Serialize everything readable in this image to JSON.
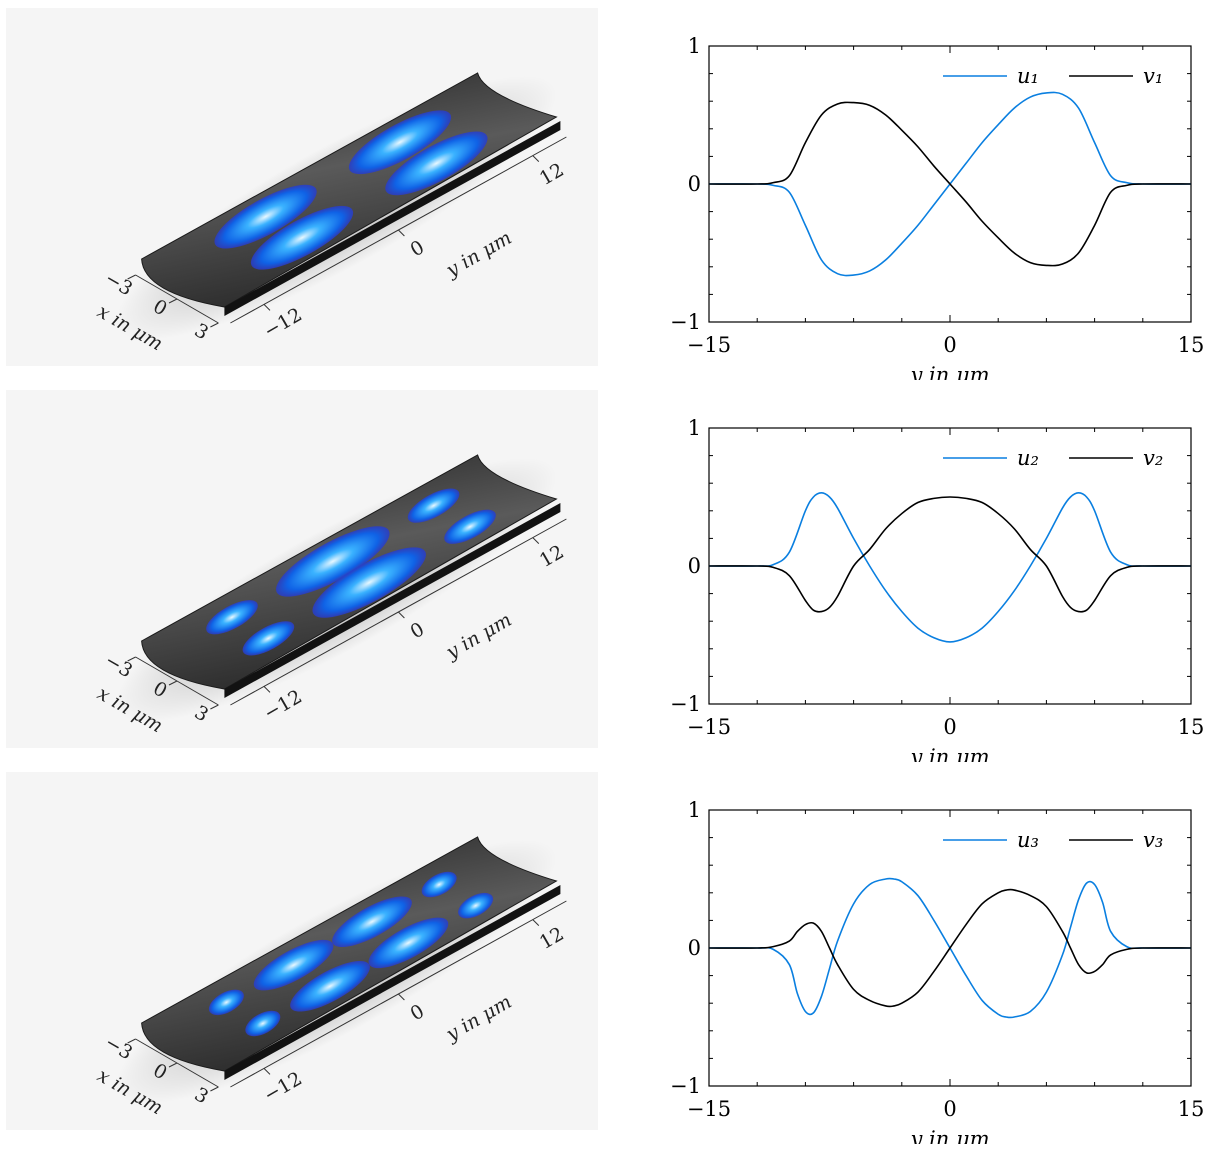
{
  "colors": {
    "u": "#0a7fe0",
    "v": "#000000",
    "surface": "#3a3a3a",
    "blob": "#2f8fff",
    "background3d": "#f5f5f5"
  },
  "axis3d": {
    "x_label": "x in μm",
    "y_label": "y in μm",
    "x_ticks": [
      "−3",
      "0",
      "3"
    ],
    "y_ticks": [
      "−12",
      "0",
      "12"
    ]
  },
  "modes3d": [
    {
      "mode": 1,
      "blobs": [
        {
          "y": -6,
          "x": -1.2,
          "len": 9
        },
        {
          "y": 6,
          "x": -1.2,
          "len": 9
        },
        {
          "y": -6,
          "x": 1.2,
          "len": 9
        },
        {
          "y": 6,
          "x": 1.2,
          "len": 9
        }
      ]
    },
    {
      "mode": 2,
      "blobs": [
        {
          "y": -9,
          "x": -1.2,
          "len": 4.5
        },
        {
          "y": 0,
          "x": -1.2,
          "len": 10
        },
        {
          "y": 9,
          "x": -1.2,
          "len": 4.5
        },
        {
          "y": -9,
          "x": 1.2,
          "len": 4.5
        },
        {
          "y": 0,
          "x": 1.2,
          "len": 10
        },
        {
          "y": 9,
          "x": 1.2,
          "len": 4.5
        }
      ]
    },
    {
      "mode": 3,
      "blobs": [
        {
          "y": -9.5,
          "x": -1.2,
          "len": 3
        },
        {
          "y": -3.5,
          "x": -1.2,
          "len": 7
        },
        {
          "y": 3.5,
          "x": -1.2,
          "len": 7
        },
        {
          "y": 9.5,
          "x": -1.2,
          "len": 3
        },
        {
          "y": -9.5,
          "x": 1.2,
          "len": 3
        },
        {
          "y": -3.5,
          "x": 1.2,
          "len": 7
        },
        {
          "y": 3.5,
          "x": 1.2,
          "len": 7
        },
        {
          "y": 9.5,
          "x": 1.2,
          "len": 3
        }
      ]
    }
  ],
  "chart_data": [
    {
      "type": "line",
      "xlabel": "y in μm",
      "ylabel": "",
      "xlim": [
        -15,
        15
      ],
      "ylim": [
        -1,
        1
      ],
      "xticks": [
        "−15",
        "0",
        "15"
      ],
      "yticks": [
        "−1",
        "0",
        "1"
      ],
      "legend_position": "top-right",
      "series": [
        {
          "name": "u₁",
          "color": "#0a7fe0",
          "x": [
            -15,
            -12,
            -11,
            -10,
            -9,
            -8,
            -7,
            -6,
            -5,
            -4,
            -3,
            -2,
            -1,
            0,
            1,
            2,
            3,
            4,
            5,
            6,
            7,
            8,
            9,
            10,
            11,
            12,
            15
          ],
          "y": [
            0,
            0,
            -0.01,
            -0.06,
            -0.3,
            -0.55,
            -0.65,
            -0.66,
            -0.63,
            -0.55,
            -0.43,
            -0.3,
            -0.15,
            0,
            0.15,
            0.3,
            0.43,
            0.55,
            0.63,
            0.66,
            0.65,
            0.55,
            0.3,
            0.06,
            0.01,
            0,
            0
          ]
        },
        {
          "name": "v₁",
          "color": "#000000",
          "x": [
            -15,
            -12,
            -11,
            -10,
            -9,
            -8,
            -7,
            -6,
            -5,
            -4,
            -3,
            -2,
            -1,
            0,
            1,
            2,
            3,
            4,
            5,
            6,
            7,
            8,
            9,
            10,
            11,
            12,
            15
          ],
          "y": [
            0,
            0,
            0.01,
            0.06,
            0.3,
            0.5,
            0.58,
            0.59,
            0.57,
            0.5,
            0.39,
            0.27,
            0.13,
            0,
            -0.13,
            -0.27,
            -0.39,
            -0.5,
            -0.57,
            -0.59,
            -0.58,
            -0.5,
            -0.3,
            -0.06,
            -0.01,
            0,
            0
          ]
        }
      ]
    },
    {
      "type": "line",
      "xlabel": "y in μm",
      "ylabel": "",
      "xlim": [
        -15,
        15
      ],
      "ylim": [
        -1,
        1
      ],
      "xticks": [
        "−15",
        "0",
        "15"
      ],
      "yticks": [
        "−1",
        "0",
        "1"
      ],
      "legend_position": "top-right",
      "series": [
        {
          "name": "u₂",
          "color": "#0a7fe0",
          "x": [
            -15,
            -12,
            -11,
            -10,
            -9,
            -8.5,
            -8,
            -7.5,
            -7,
            -6,
            -5,
            -4,
            -3,
            -2,
            -1,
            0,
            1,
            2,
            3,
            4,
            5,
            6,
            7,
            7.5,
            8,
            8.5,
            9,
            10,
            11,
            12,
            15
          ],
          "y": [
            0,
            0,
            0.01,
            0.1,
            0.4,
            0.5,
            0.53,
            0.5,
            0.42,
            0.2,
            0.0,
            -0.18,
            -0.33,
            -0.45,
            -0.52,
            -0.55,
            -0.52,
            -0.45,
            -0.33,
            -0.18,
            0.0,
            0.2,
            0.42,
            0.5,
            0.53,
            0.5,
            0.4,
            0.1,
            0.01,
            0,
            0
          ]
        },
        {
          "name": "v₂",
          "color": "#000000",
          "x": [
            -15,
            -12,
            -11,
            -10,
            -9,
            -8.5,
            -8,
            -7.5,
            -7,
            -6,
            -5,
            -4,
            -3,
            -2,
            -1,
            0,
            1,
            2,
            3,
            4,
            5,
            6,
            7,
            7.5,
            8,
            8.5,
            9,
            10,
            11,
            12,
            15
          ],
          "y": [
            0,
            0,
            -0.01,
            -0.07,
            -0.25,
            -0.32,
            -0.33,
            -0.3,
            -0.22,
            0.0,
            0.12,
            0.27,
            0.38,
            0.46,
            0.49,
            0.5,
            0.49,
            0.46,
            0.38,
            0.27,
            0.12,
            0.0,
            -0.22,
            -0.3,
            -0.33,
            -0.32,
            -0.25,
            -0.07,
            -0.01,
            0,
            0
          ]
        }
      ]
    },
    {
      "type": "line",
      "xlabel": "y in μm",
      "ylabel": "",
      "xlim": [
        -15,
        15
      ],
      "ylim": [
        -1,
        1
      ],
      "xticks": [
        "−15",
        "0",
        "15"
      ],
      "yticks": [
        "−1",
        "0",
        "1"
      ],
      "legend_position": "top-right",
      "series": [
        {
          "name": "u₃",
          "color": "#0a7fe0",
          "x": [
            -15,
            -12,
            -11,
            -10,
            -9.5,
            -9,
            -8.5,
            -8,
            -7.5,
            -7,
            -6,
            -5,
            -4,
            -3.5,
            -3,
            -2,
            -1,
            0,
            1,
            2,
            3,
            3.5,
            4,
            5,
            6,
            7,
            7.5,
            8,
            8.5,
            9,
            9.5,
            10,
            11,
            12,
            15
          ],
          "y": [
            0,
            0,
            -0.01,
            -0.12,
            -0.33,
            -0.46,
            -0.47,
            -0.35,
            -0.15,
            0.05,
            0.32,
            0.46,
            0.5,
            0.5,
            0.48,
            0.38,
            0.2,
            0.0,
            -0.2,
            -0.38,
            -0.48,
            -0.5,
            -0.5,
            -0.46,
            -0.32,
            -0.05,
            0.15,
            0.35,
            0.47,
            0.46,
            0.33,
            0.12,
            0.01,
            0,
            0
          ]
        },
        {
          "name": "v₃",
          "color": "#000000",
          "x": [
            -15,
            -12,
            -11,
            -10,
            -9.5,
            -9,
            -8.5,
            -8,
            -7.5,
            -7,
            -6,
            -5,
            -4,
            -3.5,
            -3,
            -2,
            -1,
            0,
            1,
            2,
            3,
            3.5,
            4,
            5,
            6,
            7,
            7.5,
            8,
            8.5,
            9,
            9.5,
            10,
            11,
            12,
            15
          ],
          "y": [
            0,
            0,
            0.01,
            0.05,
            0.12,
            0.17,
            0.18,
            0.12,
            0.0,
            -0.12,
            -0.3,
            -0.38,
            -0.42,
            -0.42,
            -0.4,
            -0.32,
            -0.17,
            0.0,
            0.17,
            0.32,
            0.4,
            0.42,
            0.42,
            0.38,
            0.3,
            0.12,
            0.0,
            -0.12,
            -0.18,
            -0.17,
            -0.12,
            -0.05,
            -0.01,
            0,
            0
          ]
        }
      ]
    }
  ]
}
